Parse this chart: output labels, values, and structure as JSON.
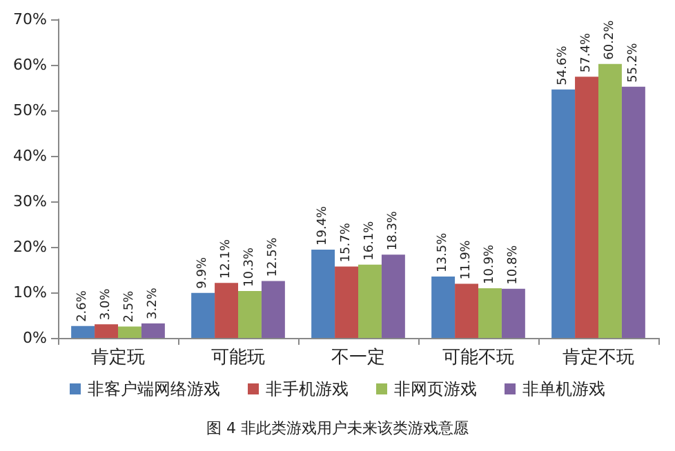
{
  "chart_data": {
    "type": "bar",
    "categories": [
      "肯定玩",
      "可能玩",
      "不一定",
      "可能不玩",
      "肯定不玩"
    ],
    "series": [
      {
        "name": "非客户端网络游戏",
        "color": "#4f81bd",
        "values": [
          2.6,
          9.9,
          19.4,
          13.5,
          54.6
        ],
        "value_labels": [
          "2.6%",
          "9.9%",
          "19.4%",
          "13.5%",
          "54.6%"
        ]
      },
      {
        "name": "非手机游戏",
        "color": "#c0504d",
        "values": [
          3.0,
          12.1,
          15.7,
          11.9,
          57.4
        ],
        "value_labels": [
          "3.0%",
          "12.1%",
          "15.7%",
          "11.9%",
          "57.4%"
        ]
      },
      {
        "name": "非网页游戏",
        "color": "#9bbb59",
        "values": [
          2.5,
          10.3,
          16.1,
          10.9,
          60.2
        ],
        "value_labels": [
          "2.5%",
          "10.3%",
          "16.1%",
          "10.9%",
          "60.2%"
        ]
      },
      {
        "name": "非单机游戏",
        "color": "#8064a2",
        "values": [
          3.2,
          12.5,
          18.3,
          10.8,
          55.2
        ],
        "value_labels": [
          "3.2%",
          "12.5%",
          "18.3%",
          "10.8%",
          "55.2%"
        ]
      }
    ],
    "ylim": [
      0,
      70
    ],
    "yticks": [
      {
        "value": 0,
        "label": "0%"
      },
      {
        "value": 10,
        "label": "10%"
      },
      {
        "value": 20,
        "label": "20%"
      },
      {
        "value": 30,
        "label": "30%"
      },
      {
        "value": 40,
        "label": "40%"
      },
      {
        "value": 50,
        "label": "50%"
      },
      {
        "value": 60,
        "label": "60%"
      },
      {
        "value": 70,
        "label": "70%"
      }
    ],
    "grid": false,
    "legend": "bottom",
    "annotations": [
      "图 4 非此类游戏用户未来该类游戏意愿"
    ]
  }
}
